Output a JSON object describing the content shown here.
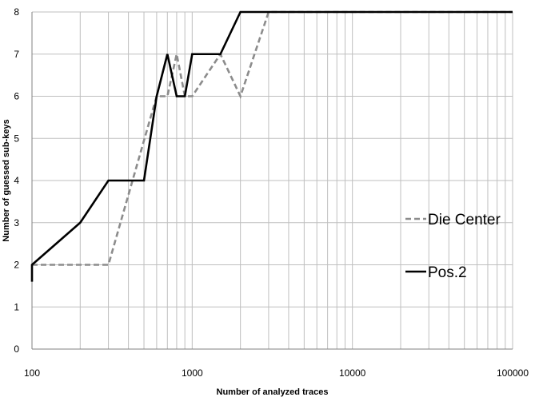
{
  "chart_data": {
    "type": "line",
    "title": "",
    "xlabel": "Number of analyzed traces",
    "ylabel": "Number of guessed sub-keys",
    "x_scale": "log",
    "xlim": [
      100,
      100000
    ],
    "ylim": [
      0,
      8
    ],
    "grid": true,
    "legend_position": "right",
    "x_tick_labels": [
      "100",
      "1000",
      "10000",
      "100000"
    ],
    "x_tick_values": [
      100,
      1000,
      10000,
      100000
    ],
    "y_tick_labels": [
      "0",
      "1",
      "2",
      "3",
      "4",
      "5",
      "6",
      "7",
      "8"
    ],
    "series": [
      {
        "name": "Die Center",
        "color": "#8c8c8c",
        "dash": true,
        "points": [
          [
            100,
            2
          ],
          [
            300,
            2
          ],
          [
            600,
            6
          ],
          [
            700,
            6
          ],
          [
            800,
            7
          ],
          [
            900,
            6
          ],
          [
            1000,
            6
          ],
          [
            1500,
            7
          ],
          [
            2000,
            6
          ],
          [
            3000,
            8
          ],
          [
            100000,
            8
          ]
        ]
      },
      {
        "name": "Pos.2",
        "color": "#000000",
        "dash": false,
        "points": [
          [
            100,
            1.6
          ],
          [
            100,
            2
          ],
          [
            200,
            3
          ],
          [
            300,
            4
          ],
          [
            500,
            4
          ],
          [
            600,
            6
          ],
          [
            700,
            7
          ],
          [
            800,
            6
          ],
          [
            900,
            6
          ],
          [
            1000,
            7
          ],
          [
            1500,
            7
          ],
          [
            2000,
            8
          ],
          [
            100000,
            8
          ]
        ]
      }
    ]
  }
}
